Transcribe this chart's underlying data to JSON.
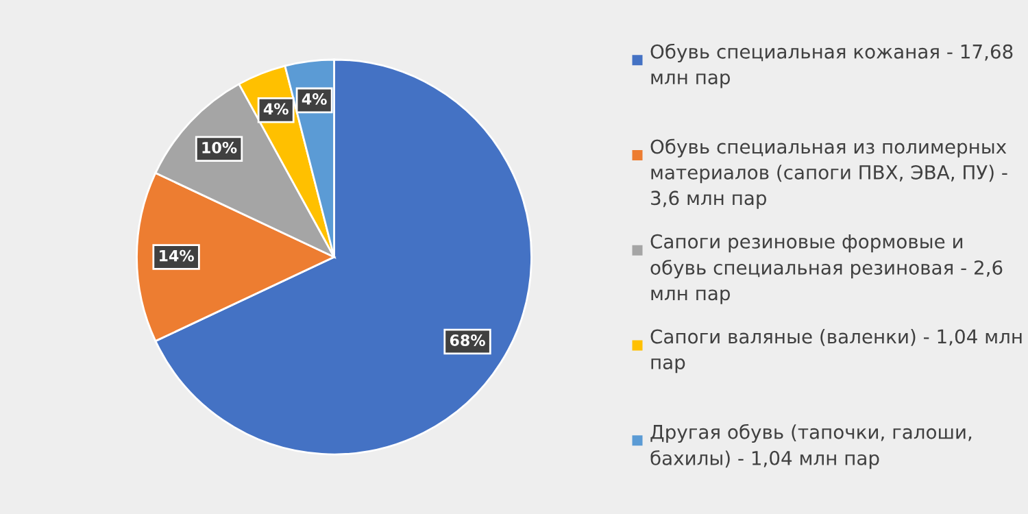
{
  "chart_data": {
    "type": "pie",
    "categories": [
      "Обувь специальная кожаная - 17,68 млн пар",
      "Обувь специальная из полимерных материалов (сапоги ПВХ, ЭВА, ПУ) - 3,6 млн пар",
      "Сапоги резиновые формовые и обувь специальная резиновая - 2,6 млн пар",
      "Сапоги валяные (валенки) - 1,04 млн пар",
      "Другая обувь (тапочки, галоши, бахилы) - 1,04 млн пар"
    ],
    "values": [
      68,
      14,
      10,
      4,
      4
    ],
    "colors": [
      "#4472c4",
      "#ed7d31",
      "#a5a5a5",
      "#ffc000",
      "#5b9bd5"
    ],
    "value_labels": [
      "68%",
      "14%",
      "10%",
      "4%",
      "4%"
    ],
    "legend": "right"
  }
}
